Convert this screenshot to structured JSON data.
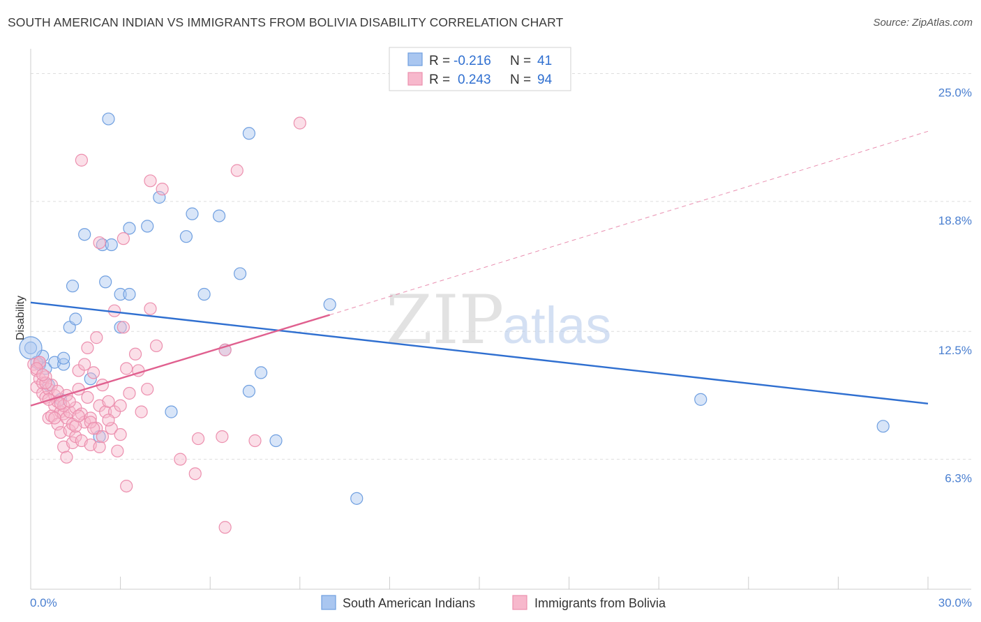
{
  "title": "SOUTH AMERICAN INDIAN VS IMMIGRANTS FROM BOLIVIA DISABILITY CORRELATION CHART",
  "source": "Source: ZipAtlas.com",
  "watermark": {
    "zip": "ZIP",
    "atlas": "atlas"
  },
  "colors": {
    "blue_fill": "#a9c6f0",
    "blue_stroke": "#6f9fe0",
    "blue_line": "#2f6fd0",
    "pink_fill": "#f7b8cc",
    "pink_stroke": "#ec8fae",
    "pink_line": "#e0608f",
    "grid": "#dddddd",
    "tick_label": "#4a7fd0"
  },
  "legend": {
    "rows": [
      {
        "r_label": "R =",
        "r_value": "-0.216",
        "n_label": "N =",
        "n_value": "41"
      },
      {
        "r_label": "R =",
        "r_value": "0.243",
        "n_label": "N =",
        "n_value": "94"
      }
    ]
  },
  "chart_data": {
    "type": "scatter",
    "title": "SOUTH AMERICAN INDIAN VS IMMIGRANTS FROM BOLIVIA DISABILITY CORRELATION CHART",
    "xlabel": "",
    "ylabel": "Disability",
    "xlim": [
      0,
      30
    ],
    "ylim": [
      0,
      26.2
    ],
    "x_tick_labels": {
      "left": "0.0%",
      "right": "30.0%"
    },
    "y_ticks": [
      {
        "value": 6.3,
        "label": "6.3%"
      },
      {
        "value": 12.5,
        "label": "12.5%"
      },
      {
        "value": 18.8,
        "label": "18.8%"
      },
      {
        "value": 25.0,
        "label": "25.0%"
      }
    ],
    "grid": true,
    "series": [
      {
        "name": "South American Indians",
        "color": "#6f9fe0",
        "r": -0.216,
        "n": 41,
        "trend": {
          "x0": 0,
          "y0": 13.9,
          "x1": 30,
          "y1": 9.0
        },
        "points": [
          [
            0.0,
            11.7
          ],
          [
            0.3,
            10.9
          ],
          [
            0.4,
            11.3
          ],
          [
            0.5,
            10.7
          ],
          [
            0.8,
            11.0
          ],
          [
            1.1,
            10.9
          ],
          [
            1.1,
            11.2
          ],
          [
            1.3,
            12.7
          ],
          [
            1.5,
            13.1
          ],
          [
            1.4,
            14.7
          ],
          [
            1.8,
            17.2
          ],
          [
            2.0,
            10.2
          ],
          [
            2.3,
            7.4
          ],
          [
            2.4,
            16.7
          ],
          [
            2.5,
            14.9
          ],
          [
            2.7,
            16.7
          ],
          [
            2.6,
            22.8
          ],
          [
            3.0,
            14.3
          ],
          [
            3.0,
            12.7
          ],
          [
            3.3,
            14.3
          ],
          [
            3.3,
            17.5
          ],
          [
            3.9,
            17.6
          ],
          [
            4.3,
            19.0
          ],
          [
            4.7,
            8.6
          ],
          [
            5.2,
            17.1
          ],
          [
            5.4,
            18.2
          ],
          [
            5.8,
            14.3
          ],
          [
            6.3,
            18.1
          ],
          [
            6.5,
            11.6
          ],
          [
            7.0,
            15.3
          ],
          [
            7.3,
            22.1
          ],
          [
            7.3,
            9.6
          ],
          [
            7.7,
            10.5
          ],
          [
            8.2,
            7.2
          ],
          [
            10.0,
            13.8
          ],
          [
            10.9,
            4.4
          ],
          [
            22.4,
            9.2
          ],
          [
            28.5,
            7.9
          ],
          [
            0.2,
            11.0
          ],
          [
            0.6,
            9.9
          ],
          [
            1.0,
            9.2
          ]
        ]
      },
      {
        "name": "Immigrants from Bolivia",
        "color": "#ec8fae",
        "r": 0.243,
        "n": 94,
        "trend": {
          "x0": 0,
          "y0": 8.9,
          "x1": 10.0,
          "y1": 13.3,
          "dash_x1": 30,
          "dash_y1": 22.2
        },
        "points": [
          [
            0.1,
            10.9
          ],
          [
            0.2,
            10.6
          ],
          [
            0.2,
            9.8
          ],
          [
            0.3,
            10.2
          ],
          [
            0.3,
            11.0
          ],
          [
            0.4,
            9.5
          ],
          [
            0.4,
            10.0
          ],
          [
            0.5,
            9.3
          ],
          [
            0.5,
            10.3
          ],
          [
            0.6,
            8.3
          ],
          [
            0.6,
            9.7
          ],
          [
            0.7,
            8.4
          ],
          [
            0.7,
            9.9
          ],
          [
            0.8,
            8.9
          ],
          [
            0.8,
            9.4
          ],
          [
            0.9,
            8.0
          ],
          [
            0.9,
            9.1
          ],
          [
            1.0,
            7.6
          ],
          [
            1.0,
            8.6
          ],
          [
            1.1,
            6.9
          ],
          [
            1.1,
            8.5
          ],
          [
            1.2,
            6.4
          ],
          [
            1.2,
            8.3
          ],
          [
            1.2,
            9.4
          ],
          [
            1.3,
            7.7
          ],
          [
            1.3,
            8.6
          ],
          [
            1.4,
            7.1
          ],
          [
            1.4,
            8.0
          ],
          [
            1.5,
            7.4
          ],
          [
            1.5,
            8.8
          ],
          [
            1.6,
            9.7
          ],
          [
            1.6,
            10.6
          ],
          [
            1.7,
            8.5
          ],
          [
            1.7,
            7.2
          ],
          [
            1.8,
            8.1
          ],
          [
            1.8,
            10.9
          ],
          [
            1.9,
            9.3
          ],
          [
            1.9,
            11.7
          ],
          [
            2.0,
            8.3
          ],
          [
            2.0,
            7.0
          ],
          [
            2.1,
            10.5
          ],
          [
            2.2,
            7.8
          ],
          [
            2.2,
            12.2
          ],
          [
            2.3,
            6.9
          ],
          [
            2.3,
            8.9
          ],
          [
            2.4,
            9.9
          ],
          [
            2.5,
            8.6
          ],
          [
            2.6,
            9.1
          ],
          [
            2.7,
            7.8
          ],
          [
            2.8,
            8.6
          ],
          [
            2.8,
            13.5
          ],
          [
            2.9,
            6.7
          ],
          [
            3.0,
            8.9
          ],
          [
            3.0,
            7.5
          ],
          [
            3.1,
            12.7
          ],
          [
            3.1,
            17.0
          ],
          [
            3.2,
            10.7
          ],
          [
            3.3,
            9.5
          ],
          [
            3.5,
            11.4
          ],
          [
            3.6,
            10.6
          ],
          [
            3.7,
            8.6
          ],
          [
            3.9,
            9.7
          ],
          [
            4.0,
            13.6
          ],
          [
            4.0,
            19.8
          ],
          [
            4.2,
            11.8
          ],
          [
            4.4,
            19.4
          ],
          [
            5.0,
            6.3
          ],
          [
            5.6,
            7.3
          ],
          [
            6.4,
            7.4
          ],
          [
            7.5,
            7.2
          ],
          [
            6.5,
            11.6
          ],
          [
            5.5,
            5.6
          ],
          [
            6.5,
            3.0
          ],
          [
            3.2,
            5.0
          ],
          [
            1.7,
            20.8
          ],
          [
            6.9,
            20.3
          ],
          [
            9.0,
            22.6
          ],
          [
            2.3,
            16.8
          ],
          [
            0.3,
            11.0
          ],
          [
            0.5,
            10.0
          ],
          [
            0.9,
            9.6
          ],
          [
            1.1,
            8.9
          ],
          [
            1.5,
            7.9
          ],
          [
            2.0,
            8.1
          ],
          [
            2.4,
            7.4
          ],
          [
            0.2,
            10.7
          ],
          [
            0.4,
            10.4
          ],
          [
            0.6,
            9.2
          ],
          [
            0.8,
            8.3
          ],
          [
            1.0,
            9.0
          ],
          [
            1.3,
            9.1
          ],
          [
            1.6,
            8.4
          ],
          [
            2.1,
            7.8
          ],
          [
            2.6,
            8.2
          ]
        ]
      }
    ]
  },
  "bottom_legend": [
    {
      "label": "South American Indians"
    },
    {
      "label": "Immigrants from Bolivia"
    }
  ]
}
